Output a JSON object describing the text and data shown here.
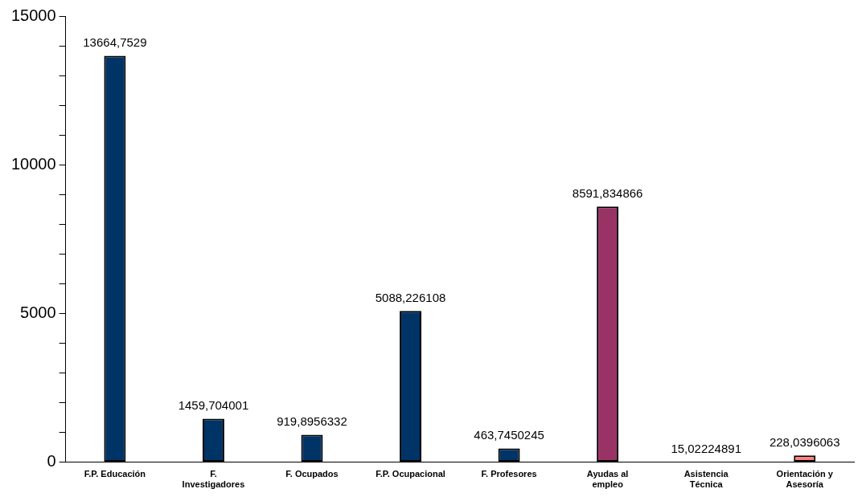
{
  "chart_data": {
    "type": "bar",
    "categories": [
      "F.P. Educación",
      "F. Investigadores",
      "F. Ocupados",
      "F.P. Ocupacional",
      "F. Profesores",
      "Ayudas al empleo",
      "Asistencia Técnica",
      "Orientación y Asesoría"
    ],
    "values": [
      13664.7529,
      1459.704001,
      919.8956332,
      5088.226108,
      463.7450245,
      8591.834866,
      15.02224891,
      228.0396063
    ],
    "colors": [
      "#003366",
      "#003366",
      "#003366",
      "#003366",
      "#003366",
      "#993366",
      "#000000",
      "#ff8080"
    ],
    "value_labels": [
      "13664,7529",
      "1459,704001",
      "919,8956332",
      "5088,226108",
      "463,7450245",
      "8591,834866",
      "15,02224891",
      "228,0396063"
    ],
    "ylim": [
      0,
      15000
    ],
    "yticks": [
      0,
      {
        "value": 1000,
        "label": null
      },
      {
        "value": 2000,
        "label": null
      },
      {
        "value": 3000,
        "label": null
      },
      {
        "value": 4000,
        "label": null
      },
      5000,
      {
        "value": 6000,
        "label": null
      },
      {
        "value": 7000,
        "label": null
      },
      {
        "value": 8000,
        "label": null
      },
      {
        "value": 9000,
        "label": null
      },
      10000,
      {
        "value": 11000,
        "label": null
      },
      {
        "value": 12000,
        "label": null
      },
      {
        "value": 13000,
        "label": null
      },
      {
        "value": 14000,
        "label": null
      },
      15000
    ],
    "grid": false,
    "legend": false
  }
}
